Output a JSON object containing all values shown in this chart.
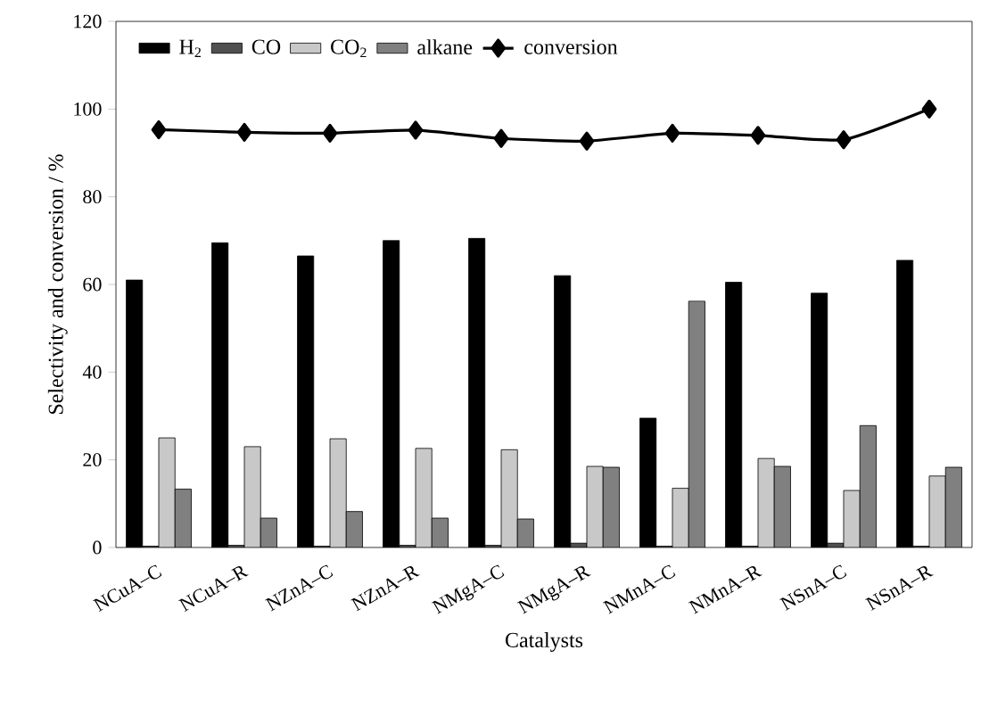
{
  "chart_data": {
    "type": "bar",
    "xlabel": "Catalysts",
    "ylabel": "Selectivity and conversion / %",
    "categories": [
      "NCuA–C",
      "NCuA–R",
      "NZnA–C",
      "NZnA–R",
      "NMgA–C",
      "NMgA–R",
      "NMnA–C",
      "NMnA–R",
      "NSnA–C",
      "NSnA–R"
    ],
    "series": [
      {
        "name": "H$_{2}$",
        "color": "#000000",
        "values": [
          61,
          69.5,
          66.5,
          70,
          70.5,
          62,
          29.5,
          60.5,
          58,
          65.5
        ]
      },
      {
        "name": "CO",
        "color": "#505050",
        "values": [
          0.3,
          0.5,
          0.3,
          0.5,
          0.5,
          1,
          0.3,
          0.3,
          1,
          0.3
        ]
      },
      {
        "name": "CO$_{2}$",
        "color": "#c8c8c8",
        "values": [
          25,
          23,
          24.8,
          22.6,
          22.3,
          18.5,
          13.5,
          20.3,
          13,
          16.3
        ]
      },
      {
        "name": "alkane",
        "color": "#808080",
        "values": [
          13.3,
          6.7,
          8.2,
          6.7,
          6.5,
          18.3,
          56.2,
          18.5,
          27.8,
          18.3
        ]
      },
      {
        "name": "conversion",
        "type": "line",
        "color": "#000000",
        "values": [
          95.3,
          94.7,
          94.5,
          95.2,
          93.3,
          92.7,
          94.5,
          94,
          93,
          100
        ]
      }
    ],
    "ylim": [
      0,
      120
    ],
    "yticks": [
      0,
      20,
      40,
      60,
      80,
      100,
      120
    ],
    "legend": "top left",
    "marker": "diamond",
    "line_style": "solid"
  }
}
